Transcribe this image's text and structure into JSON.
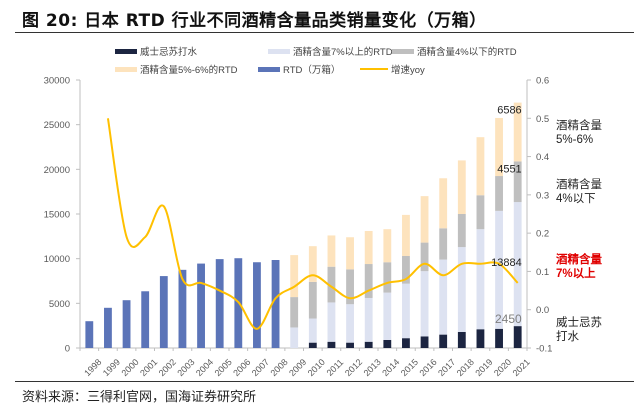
{
  "header": {
    "title": "图 20:  日本 RTD 行业不同酒精含量品类销量变化（万箱）"
  },
  "footer": {
    "source": "资料来源：三得利官网，国海证券研究所"
  },
  "colors": {
    "whisky_soda": "#1c2541",
    "above7": "#dde2f1",
    "below4": "#bfbfbf",
    "mid5_6": "#fde3bd",
    "rtd": "#5b74b8",
    "growth": "#ffc000",
    "red_label": "#e00000"
  },
  "legend": [
    {
      "key": "whisky_soda",
      "label": "威士忌苏打水",
      "kind": "bar"
    },
    {
      "key": "above7",
      "label": "酒精含量7%以上的RTD",
      "kind": "bar"
    },
    {
      "key": "below4",
      "label": "酒精含量4%以下的RTD",
      "kind": "bar"
    },
    {
      "key": "mid5_6",
      "label": "酒精含量5%-6%的RTD",
      "kind": "bar"
    },
    {
      "key": "rtd",
      "label": "RTD（万箱）",
      "kind": "bar"
    },
    {
      "key": "growth",
      "label": "增速yoy",
      "kind": "line"
    }
  ],
  "annotations": {
    "mid5_6": [
      "酒精含量",
      "5%-6%"
    ],
    "below4": [
      "酒精含量",
      "4%以下"
    ],
    "above7": [
      "酒精含量",
      "7%以上"
    ],
    "whisky": [
      "威士忌苏",
      "打水"
    ]
  },
  "chart_data": {
    "type": "bar",
    "title": "日本 RTD 行业不同酒精含量品类销量变化（万箱）",
    "categories": [
      "1998",
      "1999",
      "2000",
      "2001",
      "2002",
      "2003",
      "2004",
      "2005",
      "2006",
      "2007",
      "2008",
      "2009",
      "2010",
      "2011",
      "2012",
      "2013",
      "2014",
      "2015",
      "2016",
      "2017",
      "2018",
      "2019",
      "2020",
      "2021"
    ],
    "left_axis": {
      "ylim": [
        0,
        30000
      ],
      "ticks": [
        0,
        5000,
        10000,
        15000,
        20000,
        25000,
        30000
      ]
    },
    "right_axis": {
      "ylim": [
        -0.1,
        0.6
      ],
      "ticks": [
        "-0.1",
        "0.0",
        "0.1",
        "0.2",
        "0.3",
        "0.4",
        "0.5",
        "0.6"
      ]
    },
    "series": [
      {
        "name": "RTD（万箱）",
        "key": "rtd",
        "type": "bar",
        "axis": "left",
        "values": [
          3000,
          4500,
          5350,
          6350,
          8050,
          8750,
          9450,
          9950,
          10050,
          9600,
          9850,
          null,
          null,
          null,
          null,
          null,
          null,
          null,
          null,
          null,
          null,
          null,
          null,
          null
        ]
      },
      {
        "name": "威士忌苏打水",
        "key": "whisky_soda",
        "type": "stacked",
        "axis": "left",
        "values": [
          null,
          null,
          null,
          null,
          null,
          null,
          null,
          null,
          null,
          null,
          null,
          0,
          600,
          700,
          600,
          700,
          900,
          1100,
          1300,
          1500,
          1800,
          2100,
          2150,
          2450
        ]
      },
      {
        "name": "酒精含量7%以上的RTD",
        "key": "above7",
        "type": "stacked",
        "axis": "left",
        "values": [
          null,
          null,
          null,
          null,
          null,
          null,
          null,
          null,
          null,
          null,
          null,
          2300,
          2700,
          4400,
          4300,
          4900,
          5300,
          6100,
          7300,
          8400,
          9500,
          11200,
          13200,
          13884
        ]
      },
      {
        "name": "酒精含量4%以下的RTD",
        "key": "below4",
        "type": "stacked",
        "axis": "left",
        "values": [
          null,
          null,
          null,
          null,
          null,
          null,
          null,
          null,
          null,
          null,
          null,
          3400,
          4100,
          4000,
          3900,
          3800,
          3400,
          3100,
          3200,
          3500,
          3700,
          3800,
          3900,
          4551
        ]
      },
      {
        "name": "酒精含量5%-6%的RTD",
        "key": "mid5_6",
        "type": "stacked",
        "axis": "left",
        "values": [
          null,
          null,
          null,
          null,
          null,
          null,
          null,
          null,
          null,
          null,
          null,
          4700,
          4000,
          3500,
          3600,
          3700,
          3700,
          4600,
          5200,
          5600,
          6000,
          6500,
          6500,
          6586
        ]
      },
      {
        "name": "增速yoy",
        "key": "growth",
        "type": "line",
        "axis": "right",
        "values": [
          null,
          0.5,
          0.19,
          0.19,
          0.27,
          0.08,
          0.07,
          0.05,
          0.02,
          -0.05,
          0.03,
          0.06,
          0.09,
          0.06,
          0.03,
          0.05,
          0.07,
          0.08,
          0.12,
          0.09,
          0.12,
          0.12,
          0.12,
          0.07
        ]
      }
    ],
    "data_labels": [
      {
        "series": "mid5_6",
        "category": "2021",
        "text": "6586"
      },
      {
        "series": "below4",
        "category": "2021",
        "text": "4551"
      },
      {
        "series": "above7",
        "category": "2021",
        "text": "13884"
      },
      {
        "series": "whisky_soda",
        "category": "2021",
        "text": "2450"
      }
    ],
    "legend_position": "top",
    "grid": false,
    "xlabel": "",
    "ylabel": ""
  }
}
